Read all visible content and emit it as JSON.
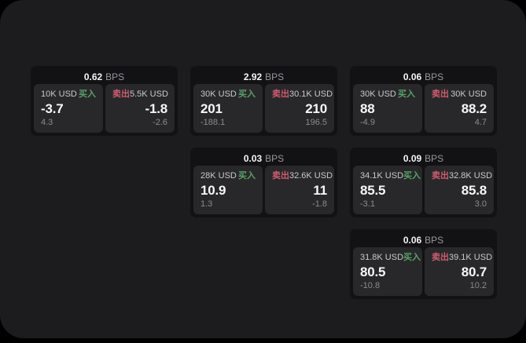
{
  "labels": {
    "buy": "买入",
    "sell": "卖出",
    "bps": "BPS"
  },
  "theme": {
    "page_bg": "#000000",
    "window_bg": "#1c1c1e",
    "card_bg": "#121214",
    "subcard_bg": "#28282a",
    "buy_color": "#57a266",
    "sell_color": "#d15b6f",
    "price_color": "#f7f7f7",
    "muted_color": "#8b8b90"
  },
  "cards": [
    {
      "col": 1,
      "row": 1,
      "bps": "0.62",
      "buy": {
        "amount": "10K USD",
        "price": "-3.7",
        "delta": "4.3"
      },
      "sell": {
        "amount": "5.5K USD",
        "price": "-1.8",
        "delta": "-2.6"
      }
    },
    {
      "col": 2,
      "row": 1,
      "bps": "2.92",
      "buy": {
        "amount": "30K USD",
        "price": "201",
        "delta": "-188.1"
      },
      "sell": {
        "amount": "30.1K USD",
        "price": "210",
        "delta": "196.5"
      }
    },
    {
      "col": 3,
      "row": 1,
      "bps": "0.06",
      "buy": {
        "amount": "30K USD",
        "price": "88",
        "delta": "-4.9"
      },
      "sell": {
        "amount": "30K USD",
        "price": "88.2",
        "delta": "4.7"
      }
    },
    {
      "col": 2,
      "row": 2,
      "bps": "0.03",
      "buy": {
        "amount": "28K USD",
        "price": "10.9",
        "delta": "1.3"
      },
      "sell": {
        "amount": "32.6K USD",
        "price": "11",
        "delta": "-1.8"
      }
    },
    {
      "col": 3,
      "row": 2,
      "bps": "0.09",
      "buy": {
        "amount": "34.1K USD",
        "price": "85.5",
        "delta": "-3.1"
      },
      "sell": {
        "amount": "32.8K USD",
        "price": "85.8",
        "delta": "3.0"
      }
    },
    {
      "col": 3,
      "row": 3,
      "bps": "0.06",
      "buy": {
        "amount": "31.8K USD",
        "price": "80.5",
        "delta": "-10.8"
      },
      "sell": {
        "amount": "39.1K USD",
        "price": "80.7",
        "delta": "10.2"
      }
    }
  ]
}
